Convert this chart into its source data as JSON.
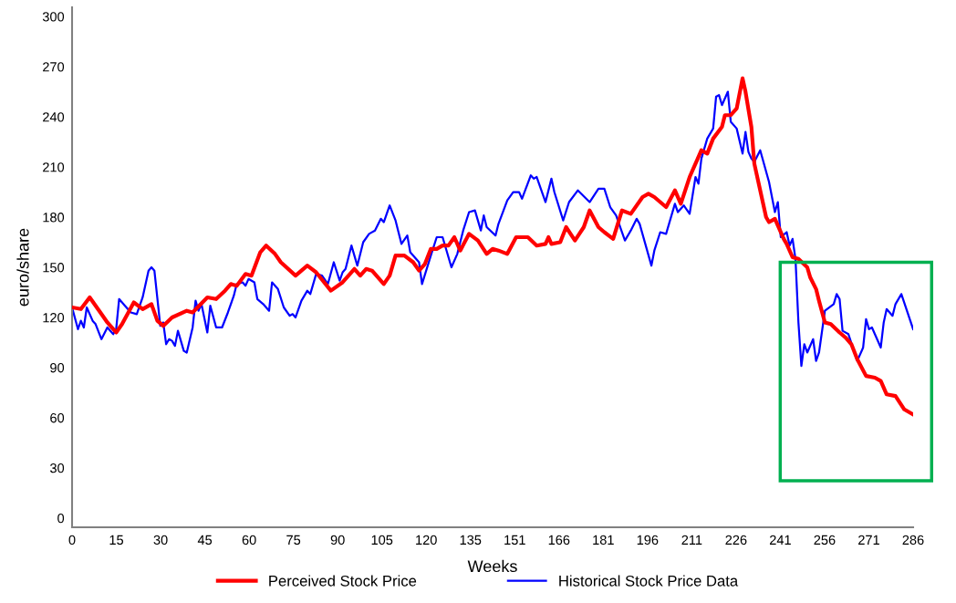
{
  "chart_data": {
    "type": "line",
    "xlabel": "Weeks",
    "ylabel": "euro/share",
    "xlim": [
      0,
      286
    ],
    "ylim": [
      -5.5,
      305.5
    ],
    "xticks": [
      0,
      {
        "value": 15.05,
        "label": "15"
      },
      {
        "value": 30.11,
        "label": "30"
      },
      {
        "value": 45.16,
        "label": "45"
      },
      {
        "value": 60.21,
        "label": "60"
      },
      {
        "value": 75.26,
        "label": "75"
      },
      {
        "value": 90.32,
        "label": "90"
      },
      {
        "value": 105.37,
        "label": "105"
      },
      {
        "value": 120.42,
        "label": "120"
      },
      {
        "value": 135.47,
        "label": "135"
      },
      {
        "value": 150.53,
        "label": "151"
      },
      {
        "value": 165.58,
        "label": "166"
      },
      {
        "value": 180.63,
        "label": "181"
      },
      {
        "value": 195.68,
        "label": "196"
      },
      {
        "value": 210.74,
        "label": "211"
      },
      {
        "value": 225.79,
        "label": "226"
      },
      {
        "value": 240.84,
        "label": "241"
      },
      {
        "value": 255.89,
        "label": "256"
      },
      {
        "value": 270.95,
        "label": "271"
      },
      286
    ],
    "yticks": [
      0,
      30,
      60,
      90,
      120,
      150,
      180,
      210,
      240,
      270,
      300
    ],
    "grid": false,
    "legend": "bottom",
    "marker": "none",
    "line_style": "solid",
    "series": [
      {
        "name": "Perceived Stock Price",
        "color": "#ff0000",
        "x": [
          0,
          3,
          6,
          10,
          12,
          15,
          17,
          21,
          24,
          27,
          29,
          31,
          34,
          39,
          41,
          46,
          49,
          52,
          54,
          56,
          59,
          61,
          64,
          66,
          69,
          71,
          76,
          80,
          83,
          88,
          92,
          96,
          98,
          100,
          102,
          106,
          108,
          110,
          113,
          116,
          118,
          120,
          122,
          124,
          126,
          128,
          130,
          132,
          135,
          138,
          141,
          143,
          145,
          148,
          151,
          153,
          155,
          158,
          161,
          162,
          163,
          166,
          168,
          171,
          174,
          176,
          179,
          181,
          184,
          187,
          190,
          194,
          196,
          198,
          202,
          205,
          207,
          210,
          212,
          214,
          216,
          218,
          221,
          222,
          224,
          226,
          228,
          229,
          231,
          232,
          236,
          237,
          239,
          242,
          243,
          245,
          247,
          250,
          251,
          253,
          254,
          256,
          258,
          261,
          263,
          265,
          267,
          270,
          273,
          275,
          277,
          280,
          283,
          286
        ],
        "values": [
          126,
          125,
          132,
          122,
          117,
          111,
          116,
          129,
          125,
          128,
          118,
          115,
          120,
          124,
          123,
          132,
          131,
          136,
          140,
          139,
          146,
          145,
          159,
          163,
          158,
          153,
          145,
          151,
          147,
          136,
          141,
          149,
          145,
          149,
          148,
          140,
          145,
          157,
          157,
          153,
          148,
          152,
          161,
          161,
          163,
          163,
          168,
          160,
          170,
          166,
          158,
          161,
          160,
          158,
          168,
          168,
          168,
          163,
          164,
          168,
          164,
          165,
          174,
          166,
          174,
          184,
          174,
          171,
          167,
          184,
          182,
          192,
          194,
          192,
          186,
          196,
          188,
          204,
          212,
          220,
          218,
          227,
          234,
          241,
          241,
          245,
          263,
          255,
          234,
          212,
          180,
          177,
          179,
          167,
          164,
          156,
          155,
          150,
          144,
          137,
          130,
          117,
          116,
          111,
          108,
          104,
          95,
          85,
          84,
          82,
          74,
          73,
          65,
          62
        ]
      },
      {
        "name": "Historical Stock Price Data",
        "color": "#0000ff",
        "x": [
          0,
          2,
          3,
          4,
          5,
          7,
          8,
          10,
          12,
          14,
          15,
          16,
          18,
          20,
          22,
          24,
          26,
          27,
          28,
          30,
          31,
          32,
          33,
          34,
          35,
          36,
          38,
          39,
          41,
          42,
          43,
          44,
          46,
          47,
          49,
          51,
          53,
          55,
          56,
          58,
          59,
          60,
          62,
          63,
          65,
          67,
          68,
          70,
          72,
          74,
          75,
          76,
          78,
          80,
          81,
          83,
          85,
          87,
          89,
          91,
          92,
          93,
          95,
          97,
          99,
          101,
          103,
          105,
          106,
          108,
          110,
          112,
          114,
          115,
          118,
          119,
          122,
          124,
          126,
          129,
          131,
          133,
          135,
          137,
          139,
          140,
          141,
          144,
          145,
          148,
          150,
          152,
          153,
          156,
          157,
          158,
          161,
          163,
          164,
          167,
          169,
          172,
          176,
          179,
          181,
          183,
          185,
          188,
          190,
          192,
          193,
          197,
          198,
          200,
          202,
          205,
          206,
          208,
          210,
          212,
          213,
          214,
          216,
          218,
          219,
          220,
          221,
          223,
          224,
          226,
          228,
          229,
          230,
          231,
          232,
          234,
          237,
          239,
          240,
          241,
          243,
          244,
          245,
          246,
          247,
          248,
          249,
          250,
          252,
          253,
          254,
          256,
          259,
          260,
          261,
          262,
          264,
          267,
          269,
          270,
          271,
          272,
          275,
          276,
          277,
          279,
          280,
          282,
          286
        ],
        "values": [
          126,
          113,
          118,
          114,
          126,
          118,
          116,
          107,
          114,
          110,
          113,
          131,
          127,
          123,
          122,
          132,
          148,
          150,
          148,
          115,
          117,
          104,
          107,
          106,
          103,
          112,
          100,
          99,
          114,
          130,
          124,
          128,
          111,
          127,
          114,
          114,
          123,
          133,
          140,
          141,
          139,
          143,
          141,
          131,
          128,
          124,
          141,
          137,
          126,
          121,
          122,
          120,
          130,
          136,
          134,
          146,
          145,
          140,
          153,
          142,
          147,
          149,
          163,
          151,
          165,
          170,
          172,
          179,
          177,
          187,
          178,
          164,
          169,
          159,
          153,
          140,
          157,
          168,
          168,
          150,
          158,
          172,
          183,
          184,
          172,
          181,
          174,
          169,
          176,
          190,
          195,
          195,
          191,
          205,
          203,
          204,
          189,
          203,
          195,
          178,
          189,
          196,
          189,
          197,
          197,
          186,
          181,
          166,
          172,
          179,
          176,
          151,
          160,
          171,
          170,
          188,
          183,
          187,
          182,
          204,
          200,
          215,
          227,
          233,
          252,
          253,
          247,
          255,
          237,
          233,
          218,
          231,
          219,
          215,
          213,
          220,
          201,
          183,
          189,
          168,
          171,
          163,
          167,
          155,
          117,
          91,
          104,
          99,
          107,
          94,
          99,
          124,
          128,
          134,
          131,
          112,
          110,
          94,
          102,
          119,
          113,
          114,
          102,
          117,
          125,
          121,
          128,
          134,
          113
        ]
      }
    ]
  }
}
